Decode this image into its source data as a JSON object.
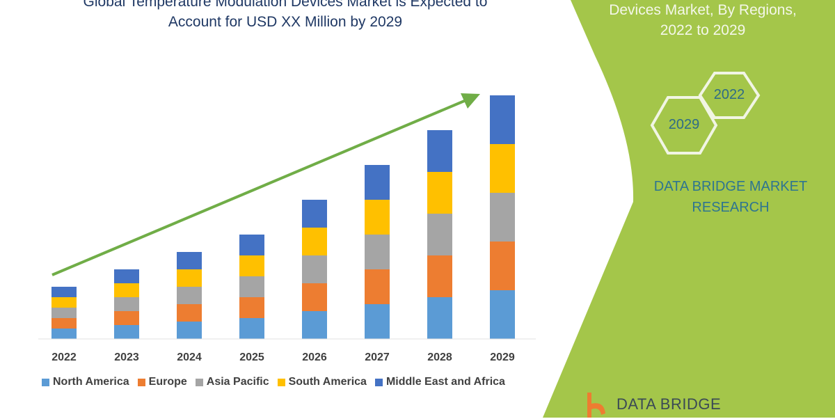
{
  "header": {
    "title_line1": "Global Temperature Modulation Devices Market is Expected to",
    "title_line2": "Account for USD XX Million by 2029"
  },
  "side_panel": {
    "title_line1": "Devices Market, By Regions,",
    "title_line2": "2022 to 2029",
    "hex_labels": [
      "2022",
      "2029"
    ],
    "brand_line1": "DATA BRIDGE MARKET",
    "brand_line2": "RESEARCH",
    "logo_text": "DATA BRIDGE",
    "panel_color": "#a4c64a"
  },
  "chart_data": {
    "type": "bar",
    "stacked": true,
    "title": "",
    "xlabel": "",
    "ylabel": "",
    "categories": [
      "2022",
      "2023",
      "2024",
      "2025",
      "2026",
      "2027",
      "2028",
      "2029"
    ],
    "series": [
      {
        "name": "North America",
        "color": "#5b9bd5",
        "values": [
          15,
          20,
          25,
          30,
          40,
          50,
          60,
          70
        ]
      },
      {
        "name": "Europe",
        "color": "#ed7d31",
        "values": [
          15,
          20,
          25,
          30,
          40,
          50,
          60,
          70
        ]
      },
      {
        "name": "Asia Pacific",
        "color": "#a5a5a5",
        "values": [
          15,
          20,
          25,
          30,
          40,
          50,
          60,
          70
        ]
      },
      {
        "name": "South America",
        "color": "#ffc000",
        "values": [
          15,
          20,
          25,
          30,
          40,
          50,
          60,
          70
        ]
      },
      {
        "name": "Middle East and Africa",
        "color": "#4472c4",
        "values": [
          15,
          20,
          25,
          30,
          40,
          50,
          60,
          70
        ]
      }
    ],
    "y_axis_shown": false,
    "grid": false,
    "legend_position": "bottom",
    "trend_arrow_color": "#70ad47"
  }
}
